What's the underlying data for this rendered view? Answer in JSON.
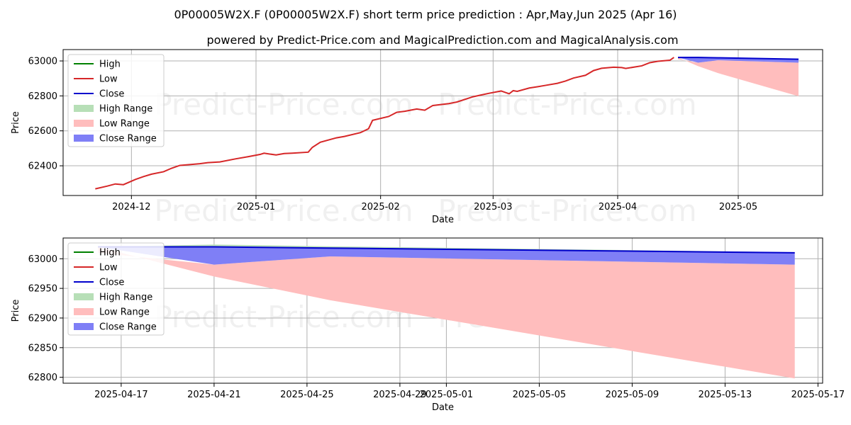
{
  "titles": {
    "main": "0P00005W2X.F (0P00005W2X.F) short term price prediction : Apr,May,Jun 2025 (Apr 16)",
    "sub": "powered by Predict-Price.com and MagicalPrediction.com and MagicalAnalysis.com"
  },
  "watermark": "Predict-Price.com",
  "colors": {
    "high": "#008000",
    "low": "#d62728",
    "close": "#0000cc",
    "high_range": "#b7dfb7",
    "low_range": "#ffbdbd",
    "close_range": "#7f7ff6"
  },
  "legend": [
    "High",
    "Low",
    "Close",
    "High Range",
    "Low Range",
    "Close Range"
  ],
  "chart_data": [
    {
      "type": "line",
      "xlabel": "Date",
      "ylabel": "Price",
      "xlim": [
        "2024-11-14",
        "2025-05-22"
      ],
      "ylim": [
        62230,
        63065
      ],
      "x_ticks": [
        "2024-12-01",
        "2025-01-01",
        "2025-02-01",
        "2025-03-01",
        "2025-04-01",
        "2025-05-01"
      ],
      "x_tick_labels": [
        "2024-12",
        "2025-01",
        "2025-02",
        "2025-03",
        "2025-04",
        "2025-05"
      ],
      "y_ticks": [
        62400,
        62600,
        62800,
        63000
      ],
      "grid": true,
      "legend_position": "top-left",
      "history": {
        "dates": [
          "2024-11-22",
          "2024-11-25",
          "2024-11-27",
          "2024-11-29",
          "2024-12-02",
          "2024-12-04",
          "2024-12-06",
          "2024-12-09",
          "2024-12-11",
          "2024-12-13",
          "2024-12-16",
          "2024-12-18",
          "2024-12-20",
          "2024-12-23",
          "2024-12-27",
          "2024-12-30",
          "2025-01-02",
          "2025-01-03",
          "2025-01-06",
          "2025-01-08",
          "2025-01-10",
          "2025-01-14",
          "2025-01-15",
          "2025-01-17",
          "2025-01-21",
          "2025-01-23",
          "2025-01-27",
          "2025-01-29",
          "2025-01-30",
          "2025-02-03",
          "2025-02-05",
          "2025-02-07",
          "2025-02-10",
          "2025-02-12",
          "2025-02-14",
          "2025-02-18",
          "2025-02-20",
          "2025-02-24",
          "2025-02-26",
          "2025-02-28",
          "2025-03-03",
          "2025-03-05",
          "2025-03-06",
          "2025-03-07",
          "2025-03-10",
          "2025-03-12",
          "2025-03-14",
          "2025-03-17",
          "2025-03-19",
          "2025-03-21",
          "2025-03-24",
          "2025-03-26",
          "2025-03-28",
          "2025-03-31",
          "2025-04-02",
          "2025-04-03",
          "2025-04-07",
          "2025-04-09",
          "2025-04-11",
          "2025-04-14",
          "2025-04-15"
        ],
        "low": [
          62268,
          62284,
          62296,
          62292,
          62322,
          62338,
          62352,
          62366,
          62386,
          62402,
          62408,
          62412,
          62418,
          62422,
          62440,
          62452,
          62465,
          62472,
          62462,
          62470,
          62472,
          62478,
          62505,
          62535,
          62560,
          62568,
          62590,
          62612,
          62660,
          62682,
          62706,
          62712,
          62725,
          62718,
          62745,
          62756,
          62765,
          62795,
          62805,
          62815,
          62828,
          62812,
          62830,
          62826,
          62845,
          62852,
          62860,
          62872,
          62885,
          62902,
          62918,
          62945,
          62958,
          62964,
          62962,
          62957,
          62972,
          62990,
          62998,
          63004,
          63020
        ]
      },
      "forecast": {
        "dates": [
          "2025-04-16",
          "2025-04-21",
          "2025-04-26",
          "2025-05-16"
        ],
        "close": [
          63020,
          63020,
          63018,
          63010
        ],
        "high_range_upper": [
          63020,
          63024,
          63021,
          63011
        ],
        "low_range_upper": [
          63010,
          62990,
          63004,
          62990
        ],
        "low_range_lower": [
          63020,
          62970,
          62930,
          62798
        ],
        "close_range_lower": [
          63020,
          62990,
          63004,
          62990
        ]
      }
    },
    {
      "type": "line",
      "xlabel": "Date",
      "ylabel": "Price",
      "xlim": [
        "2025-04-14.5",
        "2025-05-17.2"
      ],
      "ylim": [
        62790,
        63035
      ],
      "x_ticks": [
        "2025-04-17",
        "2025-04-21",
        "2025-04-25",
        "2025-04-29",
        "2025-05-01",
        "2025-05-05",
        "2025-05-09",
        "2025-05-13",
        "2025-05-17"
      ],
      "x_tick_labels": [
        "2025-04-17",
        "2025-04-21",
        "2025-04-25",
        "2025-04-29",
        "2025-05-01",
        "2025-05-05",
        "2025-05-09",
        "2025-05-13",
        "2025-05-17"
      ],
      "y_ticks": [
        62800,
        62850,
        62900,
        62950,
        63000
      ],
      "grid": true,
      "legend_position": "top-left"
    }
  ]
}
